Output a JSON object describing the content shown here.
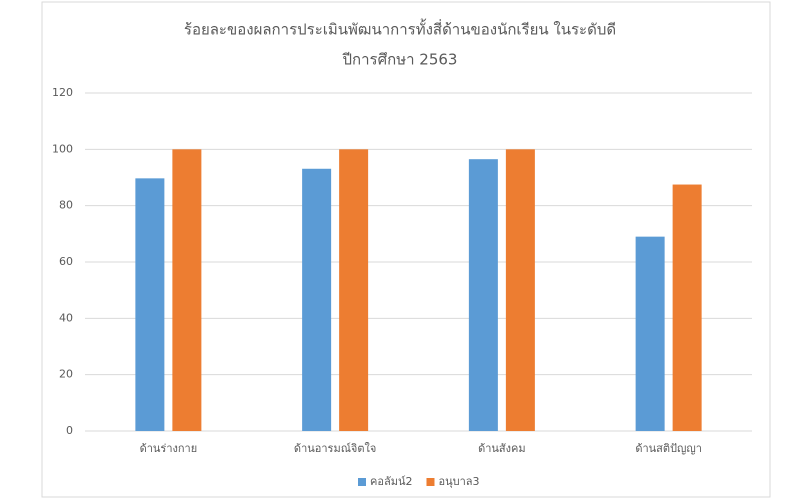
{
  "chart_data": {
    "type": "bar",
    "title": "ร้อยละของผลการประเมินพัฒนาการทั้งสี่ด้านของนักเรียน ในระดับดี",
    "subtitle": "ปีการศึกษา 2563",
    "categories": [
      "ด้านร่างกาย",
      "ด้านอารมณ์จิตใจ",
      "ด้านสังคม",
      "ด้านสติปัญญา"
    ],
    "series": [
      {
        "name": "คอลัมน์2",
        "color": "#5b9bd5",
        "values": [
          89.7,
          93.1,
          96.5,
          69
        ]
      },
      {
        "name": "อนุบาล3",
        "color": "#ed7d31",
        "values": [
          100,
          100,
          100,
          87.5
        ]
      }
    ],
    "ylim": [
      0,
      120
    ],
    "yticks": [
      0,
      20,
      40,
      60,
      80,
      100,
      120
    ],
    "grid": true,
    "legend": "bottom"
  }
}
